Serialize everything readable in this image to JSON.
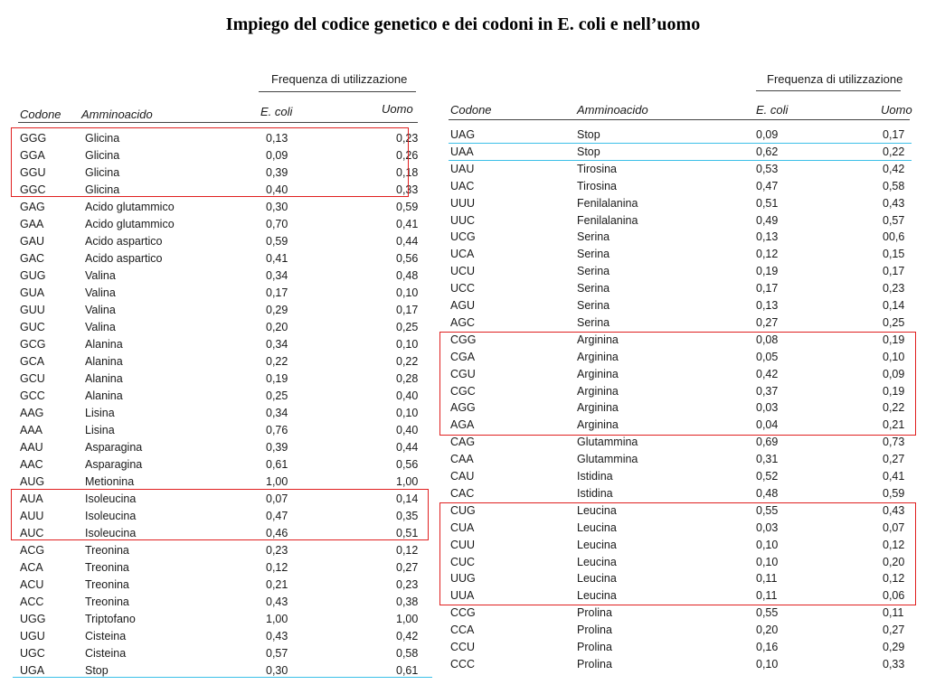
{
  "title": "Impiego del codice genetico e dei codoni in E. coli e nell’uomo",
  "headers": {
    "freq": "Frequenza di utilizzazione",
    "codone": "Codone",
    "aminoacido": "Amminoacido",
    "ecoli": "E. coli",
    "uomo": "Uomo"
  },
  "left_rows": [
    [
      "GGG",
      "Glicina",
      "0,13",
      "0,23"
    ],
    [
      "GGA",
      "Glicina",
      "0,09",
      "0,26"
    ],
    [
      "GGU",
      "Glicina",
      "0,39",
      "0,18"
    ],
    [
      "GGC",
      "Glicina",
      "0,40",
      "0,33"
    ],
    [
      "GAG",
      "Acido glutammico",
      "0,30",
      "0,59"
    ],
    [
      "GAA",
      "Acido glutammico",
      "0,70",
      "0,41"
    ],
    [
      "GAU",
      "Acido aspartico",
      "0,59",
      "0,44"
    ],
    [
      "GAC",
      "Acido aspartico",
      "0,41",
      "0,56"
    ],
    [
      "GUG",
      "Valina",
      "0,34",
      "0,48"
    ],
    [
      "GUA",
      "Valina",
      "0,17",
      "0,10"
    ],
    [
      "GUU",
      "Valina",
      "0,29",
      "0,17"
    ],
    [
      "GUC",
      "Valina",
      "0,20",
      "0,25"
    ],
    [
      "GCG",
      "Alanina",
      "0,34",
      "0,10"
    ],
    [
      "GCA",
      "Alanina",
      "0,22",
      "0,22"
    ],
    [
      "GCU",
      "Alanina",
      "0,19",
      "0,28"
    ],
    [
      "GCC",
      "Alanina",
      "0,25",
      "0,40"
    ],
    [
      "AAG",
      "Lisina",
      "0,34",
      "0,10"
    ],
    [
      "AAA",
      "Lisina",
      "0,76",
      "0,40"
    ],
    [
      "AAU",
      "Asparagina",
      "0,39",
      "0,44"
    ],
    [
      "AAC",
      "Asparagina",
      "0,61",
      "0,56"
    ],
    [
      "AUG",
      "Metionina",
      "1,00",
      "1,00"
    ],
    [
      "AUA",
      "Isoleucina",
      "0,07",
      "0,14"
    ],
    [
      "AUU",
      "Isoleucina",
      "0,47",
      "0,35"
    ],
    [
      "AUC",
      "Isoleucina",
      "0,46",
      "0,51"
    ],
    [
      "ACG",
      "Treonina",
      "0,23",
      "0,12"
    ],
    [
      "ACA",
      "Treonina",
      "0,12",
      "0,27"
    ],
    [
      "ACU",
      "Treonina",
      "0,21",
      "0,23"
    ],
    [
      "ACC",
      "Treonina",
      "0,43",
      "0,38"
    ],
    [
      "UGG",
      "Triptofano",
      "1,00",
      "1,00"
    ],
    [
      "UGU",
      "Cisteina",
      "0,43",
      "0,42"
    ],
    [
      "UGC",
      "Cisteina",
      "0,57",
      "0,58"
    ],
    [
      "UGA",
      "Stop",
      "0,30",
      "0,61"
    ]
  ],
  "right_rows": [
    [
      "UAG",
      "Stop",
      "0,09",
      "0,17"
    ],
    [
      "UAA",
      "Stop",
      "0,62",
      "0,22"
    ],
    [
      "UAU",
      "Tirosina",
      "0,53",
      "0,42"
    ],
    [
      "UAC",
      "Tirosina",
      "0,47",
      "0,58"
    ],
    [
      "UUU",
      "Fenilalanina",
      "0,51",
      "0,43"
    ],
    [
      "UUC",
      "Fenilalanina",
      "0,49",
      "0,57"
    ],
    [
      "UCG",
      "Serina",
      "0,13",
      "00,6"
    ],
    [
      "UCA",
      "Serina",
      "0,12",
      "0,15"
    ],
    [
      "UCU",
      "Serina",
      "0,19",
      "0,17"
    ],
    [
      "UCC",
      "Serina",
      "0,17",
      "0,23"
    ],
    [
      "AGU",
      "Serina",
      "0,13",
      "0,14"
    ],
    [
      "AGC",
      "Serina",
      "0,27",
      "0,25"
    ],
    [
      "CGG",
      "Arginina",
      "0,08",
      "0,19"
    ],
    [
      "CGA",
      "Arginina",
      "0,05",
      "0,10"
    ],
    [
      "CGU",
      "Arginina",
      "0,42",
      "0,09"
    ],
    [
      "CGC",
      "Arginina",
      "0,37",
      "0,19"
    ],
    [
      "AGG",
      "Arginina",
      "0,03",
      "0,22"
    ],
    [
      "AGA",
      "Arginina",
      "0,04",
      "0,21"
    ],
    [
      "CAG",
      "Glutammina",
      "0,69",
      "0,73"
    ],
    [
      "CAA",
      "Glutammina",
      "0,31",
      "0,27"
    ],
    [
      "CAU",
      "Istidina",
      "0,52",
      "0,41"
    ],
    [
      "CAC",
      "Istidina",
      "0,48",
      "0,59"
    ],
    [
      "CUG",
      "Leucina",
      "0,55",
      "0,43"
    ],
    [
      "CUA",
      "Leucina",
      "0,03",
      "0,07"
    ],
    [
      "CUU",
      "Leucina",
      "0,10",
      "0,12"
    ],
    [
      "CUC",
      "Leucina",
      "0,10",
      "0,20"
    ],
    [
      "UUG",
      "Leucina",
      "0,11",
      "0,12"
    ],
    [
      "UUA",
      "Leucina",
      "0,11",
      "0,06"
    ],
    [
      "CCG",
      "Prolina",
      "0,55",
      "0,11"
    ],
    [
      "CCA",
      "Prolina",
      "0,20",
      "0,27"
    ],
    [
      "CCU",
      "Prolina",
      "0,16",
      "0,29"
    ],
    [
      "CCC",
      "Prolina",
      "0,10",
      "0,33"
    ]
  ],
  "highlights": {
    "red_color": "#e02020",
    "cyan_color": "#3cc0e8"
  }
}
